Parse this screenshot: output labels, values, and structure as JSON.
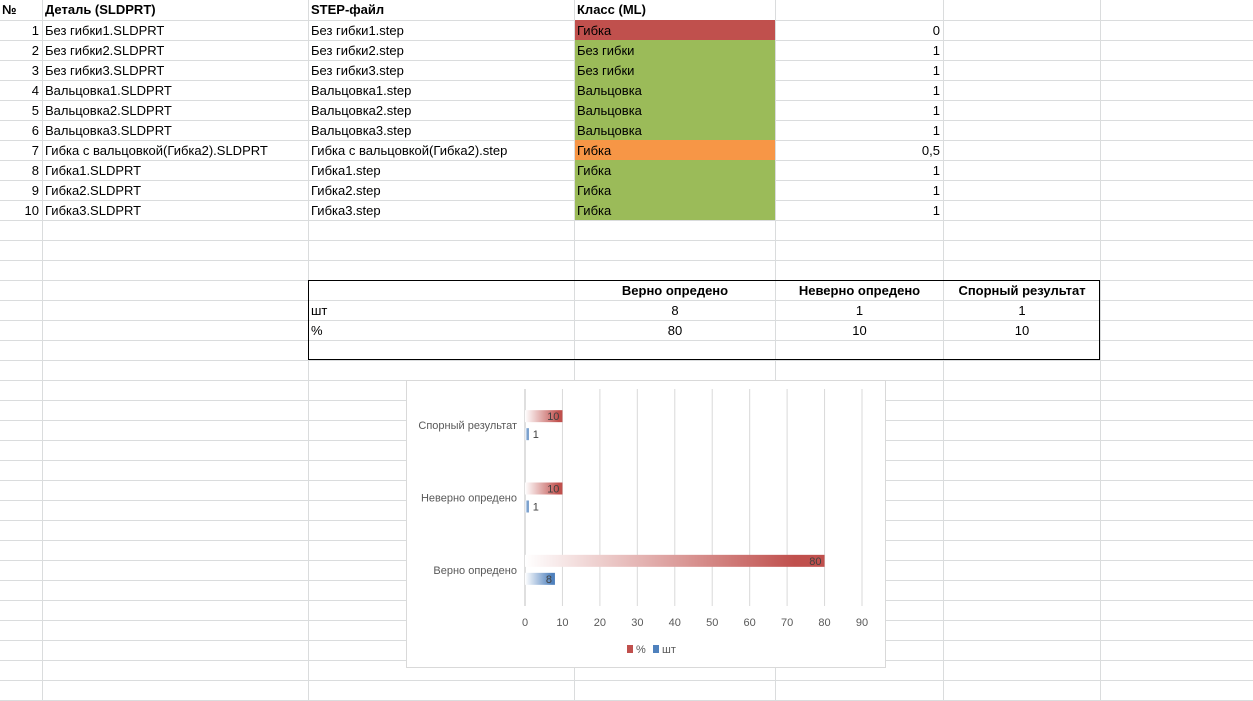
{
  "sheet": {
    "headers": {
      "num": "№",
      "part": "Деталь (SLDPRT)",
      "step": "STEP-файл",
      "class": "Класс (ML)"
    },
    "rows": [
      {
        "num": "1",
        "part": "Без гибки1.SLDPRT",
        "step": "Без гибки1.step",
        "class": "Гибка",
        "score": "0",
        "fill": "#c0504d"
      },
      {
        "num": "2",
        "part": "Без гибки2.SLDPRT",
        "step": "Без гибки2.step",
        "class": "Без гибки",
        "score": "1",
        "fill": "#9bbb59"
      },
      {
        "num": "3",
        "part": "Без гибки3.SLDPRT",
        "step": "Без гибки3.step",
        "class": "Без гибки",
        "score": "1",
        "fill": "#9bbb59"
      },
      {
        "num": "4",
        "part": "Вальцовка1.SLDPRT",
        "step": "Вальцовка1.step",
        "class": "Вальцовка",
        "score": "1",
        "fill": "#9bbb59"
      },
      {
        "num": "5",
        "part": "Вальцовка2.SLDPRT",
        "step": "Вальцовка2.step",
        "class": "Вальцовка",
        "score": "1",
        "fill": "#9bbb59"
      },
      {
        "num": "6",
        "part": "Вальцовка3.SLDPRT",
        "step": "Вальцовка3.step",
        "class": "Вальцовка",
        "score": "1",
        "fill": "#9bbb59"
      },
      {
        "num": "7",
        "part": "Гибка с вальцовкой(Гибка2).SLDPRT",
        "step": "Гибка с вальцовкой(Гибка2).step",
        "class": "Гибка",
        "score": "0,5",
        "fill": "#f79646"
      },
      {
        "num": "8",
        "part": "Гибка1.SLDPRT",
        "step": "Гибка1.step",
        "class": "Гибка",
        "score": "1",
        "fill": "#9bbb59"
      },
      {
        "num": "9",
        "part": "Гибка2.SLDPRT",
        "step": "Гибка2.step",
        "class": "Гибка",
        "score": "1",
        "fill": "#9bbb59"
      },
      {
        "num": "10",
        "part": "Гибка3.SLDPRT",
        "step": "Гибка3.step",
        "class": "Гибка",
        "score": "1",
        "fill": "#9bbb59"
      }
    ]
  },
  "summary": {
    "headers": [
      "Верно опредено",
      "Неверно опредено",
      "Спорный результат"
    ],
    "rows": [
      {
        "label": "шт",
        "values": [
          "8",
          "1",
          "1"
        ]
      },
      {
        "label": "%",
        "values": [
          "80",
          "10",
          "10"
        ]
      }
    ]
  },
  "chart_data": {
    "type": "bar",
    "orientation": "horizontal",
    "categories": [
      "Верно опредено",
      "Неверно опредено",
      "Спорный результат"
    ],
    "series": [
      {
        "name": "шт",
        "values": [
          8,
          1,
          1
        ],
        "color": "#4f81bd"
      },
      {
        "name": "%",
        "values": [
          80,
          10,
          10
        ],
        "color": "#c0504d"
      }
    ],
    "xlim": [
      0,
      90
    ],
    "xticks": [
      "0",
      "10",
      "20",
      "30",
      "40",
      "50",
      "60",
      "70",
      "80",
      "90"
    ],
    "data_labels": true,
    "grid": true,
    "legend": "bottom"
  }
}
